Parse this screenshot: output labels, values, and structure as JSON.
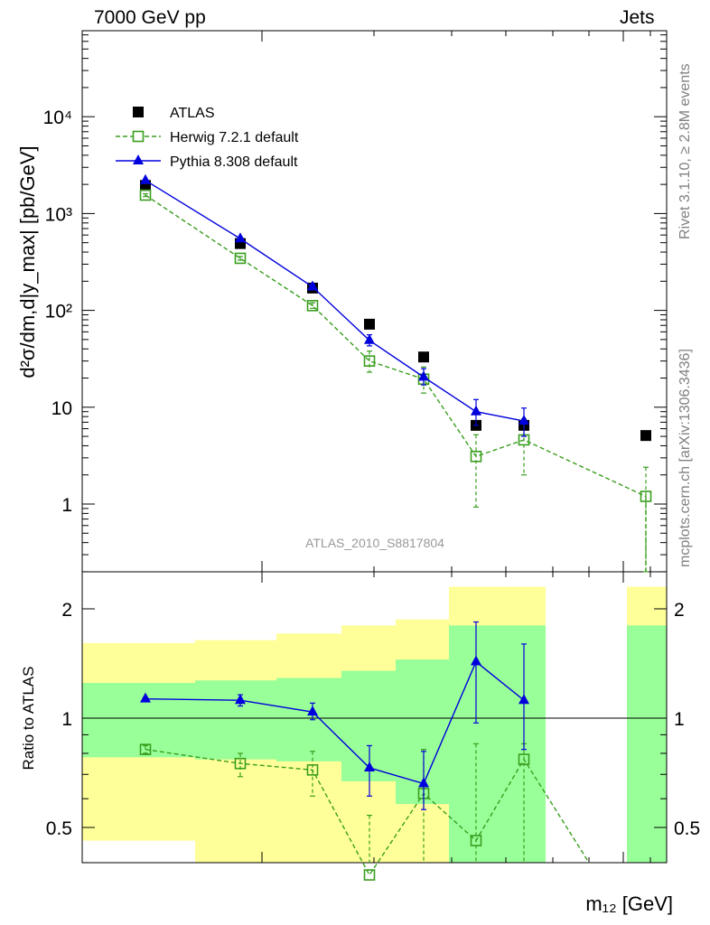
{
  "header": {
    "left": "7000 GeV pp",
    "right": "Jets",
    "side_top": "Rivet 3.1.10, ≥ 2.8M events",
    "side_bottom": "mcplots.cern.ch [arXiv:1306.3436]",
    "analysis_id": "ATLAS_2010_S8817804"
  },
  "legend": [
    {
      "name": "ATLAS",
      "color": "#000000",
      "marker": "filled-square"
    },
    {
      "name": "Herwig 7.2.1 default",
      "color": "#3a9e1e",
      "marker": "open-square",
      "dashed": true
    },
    {
      "name": "Pythia 8.308 default",
      "color": "#0000dd",
      "marker": "filled-triangle"
    }
  ],
  "chart_data": [
    {
      "type": "scatter",
      "panel": "main",
      "ylabel": "d²σ/dm,d|y_max| [pb/GeV]",
      "yscale": "log",
      "ylim": [
        0.22,
        90000
      ],
      "yticks": [
        {
          "value": 1,
          "label": "1"
        },
        {
          "value": 10,
          "label": "10"
        },
        {
          "value": 100,
          "label": "10²"
        },
        {
          "value": 1000,
          "label": "10³"
        },
        {
          "value": 10000,
          "label": "10⁴"
        }
      ],
      "xlabel": "m₁₂ [GeV]",
      "x_bins": [
        1,
        2,
        3,
        4,
        5,
        6,
        7,
        8
      ],
      "series": [
        {
          "name": "ATLAS",
          "x": [
            1,
            2,
            3,
            4,
            5,
            6,
            7,
            8
          ],
          "y": [
            1950,
            490,
            170,
            72,
            33,
            6.5,
            6.5,
            5.1
          ]
        },
        {
          "name": "Herwig 7.2.1 default",
          "x": [
            1,
            2,
            3,
            4,
            5,
            6,
            7,
            8
          ],
          "y": [
            1550,
            345,
            112,
            30,
            19.5,
            3.1,
            4.6,
            1.2
          ],
          "err_lo": [
            1500,
            330,
            105,
            23,
            14,
            0.93,
            2.0,
            0.2
          ],
          "err_hi": [
            1600,
            360,
            120,
            38,
            26,
            5.2,
            7.6,
            2.4
          ]
        },
        {
          "name": "Pythia 8.308 default",
          "x": [
            1,
            2,
            3,
            4,
            5,
            6,
            7
          ],
          "y": [
            2200,
            550,
            175,
            49,
            20.5,
            9.0,
            7.2
          ],
          "err_lo": [
            2150,
            530,
            165,
            43,
            17,
            6.5,
            5.0
          ],
          "err_hi": [
            2250,
            570,
            185,
            56,
            25,
            12,
            9.8
          ]
        }
      ]
    },
    {
      "type": "scatter",
      "panel": "ratio",
      "ylabel": "Ratio to ATLAS",
      "ylim": [
        0.33,
        2.3
      ],
      "yticks": [
        {
          "value": 0.5,
          "label": "0.5"
        },
        {
          "value": 1,
          "label": "1"
        },
        {
          "value": 2,
          "label": "2"
        }
      ],
      "bands": [
        {
          "x_from": 0.0,
          "x_to": 1.0,
          "inner": [
            0.78,
            1.25
          ],
          "outer": [
            0.46,
            1.61
          ]
        },
        {
          "x_from": 1.0,
          "x_to": 2.0,
          "inner": [
            0.77,
            1.27
          ],
          "outer": [
            0.4,
            1.64
          ]
        },
        {
          "x_from": 2.0,
          "x_to": 3.0,
          "inner": [
            0.76,
            1.29
          ],
          "outer": [
            0.33,
            1.71
          ]
        },
        {
          "x_from": 3.0,
          "x_to": 3.8,
          "inner": [
            0.67,
            1.35
          ],
          "outer": [
            0.33,
            1.8
          ]
        },
        {
          "x_from": 3.8,
          "x_to": 4.7,
          "inner": [
            0.58,
            1.45
          ],
          "outer": [
            0.33,
            1.87
          ]
        },
        {
          "x_from": 4.7,
          "x_to": 5.8,
          "inner": [
            0.33,
            1.8
          ],
          "outer": [
            0.33,
            2.3
          ]
        },
        {
          "x_from": 7.5,
          "x_to": 8.0,
          "inner": [
            0.33,
            1.8
          ],
          "outer": [
            0.33,
            2.3
          ]
        }
      ],
      "series": [
        {
          "name": "Herwig 7.2.1 default",
          "x": [
            1,
            2,
            3,
            4,
            5,
            6,
            7
          ],
          "y": [
            0.82,
            0.75,
            0.72,
            0.37,
            0.62,
            0.46,
            0.77
          ],
          "err_lo": [
            0.8,
            0.69,
            0.61,
            0.31,
            0.37,
            0.33,
            0.33
          ],
          "err_hi": [
            0.84,
            0.8,
            0.81,
            0.54,
            0.82,
            0.85,
            0.85
          ]
        },
        {
          "name": "Pythia 8.308 default",
          "x": [
            1,
            2,
            3,
            4,
            5,
            6,
            7
          ],
          "y": [
            1.13,
            1.12,
            1.04,
            0.73,
            0.66,
            1.43,
            1.12
          ],
          "err_lo": [
            1.12,
            1.08,
            0.99,
            0.61,
            0.56,
            0.97,
            0.82
          ],
          "err_hi": [
            1.14,
            1.16,
            1.1,
            0.84,
            0.81,
            1.84,
            1.6
          ]
        }
      ]
    }
  ]
}
